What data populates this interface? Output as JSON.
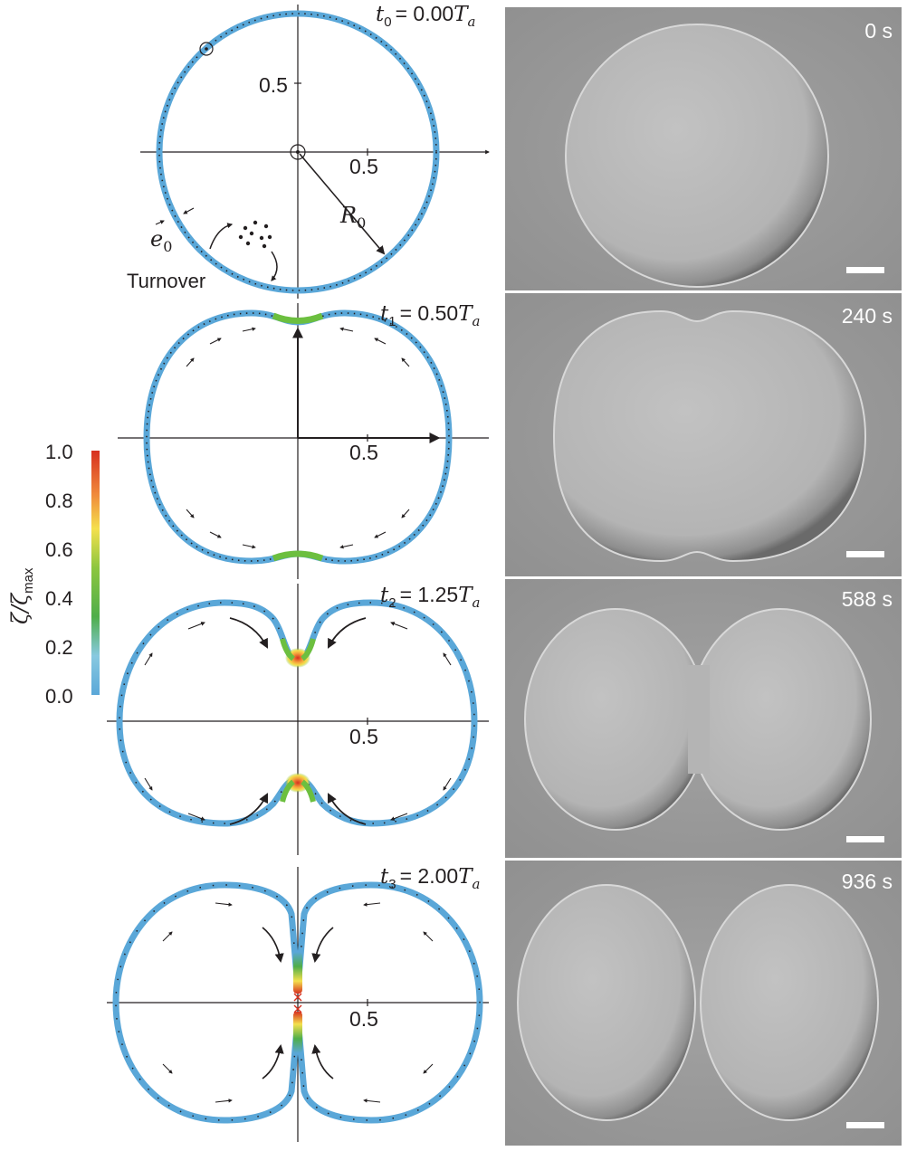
{
  "panels": [
    {
      "time_var": "t",
      "time_sub": "0",
      "time_value": "= 0.00",
      "time_unit": "T",
      "time_unit_sub": "a",
      "tick_label": "0.5",
      "y_tick_label": "0.5"
    },
    {
      "time_var": "t",
      "time_sub": "1",
      "time_value": "= 0.50",
      "time_unit": "T",
      "time_unit_sub": "a",
      "tick_label": "0.5"
    },
    {
      "time_var": "t",
      "time_sub": "2",
      "time_value": "= 1.25",
      "time_unit": "T",
      "time_unit_sub": "a",
      "tick_label": "0.5"
    },
    {
      "time_var": "t",
      "time_sub": "3",
      "time_value": "= 2.00",
      "time_unit": "T",
      "time_unit_sub": "a",
      "tick_label": "0.5"
    }
  ],
  "annotations": {
    "radius_var": "R",
    "radius_sub": "0",
    "thickness_var": "e",
    "thickness_sub": "0",
    "turnover": "Turnover"
  },
  "colorbar": {
    "label_var": "ζ/ζ",
    "label_sub": "max",
    "ticks": [
      "1.0",
      "0.8",
      "0.6",
      "0.4",
      "0.2",
      "0.0"
    ],
    "colors": [
      "#d7301f",
      "#f08a3c",
      "#f4e04d",
      "#8cc63f",
      "#4fae4a",
      "#88c9e0",
      "#5aa7d8"
    ]
  },
  "photos": [
    {
      "time_label": "0 s"
    },
    {
      "time_label": "240 s"
    },
    {
      "time_label": "588 s"
    },
    {
      "time_label": "936 s"
    }
  ],
  "colors": {
    "cortex": "#5aa7d8",
    "axis": "#231f20",
    "photo_bg": "#9a9a9a",
    "cell_fill": "#b8b8b8"
  }
}
